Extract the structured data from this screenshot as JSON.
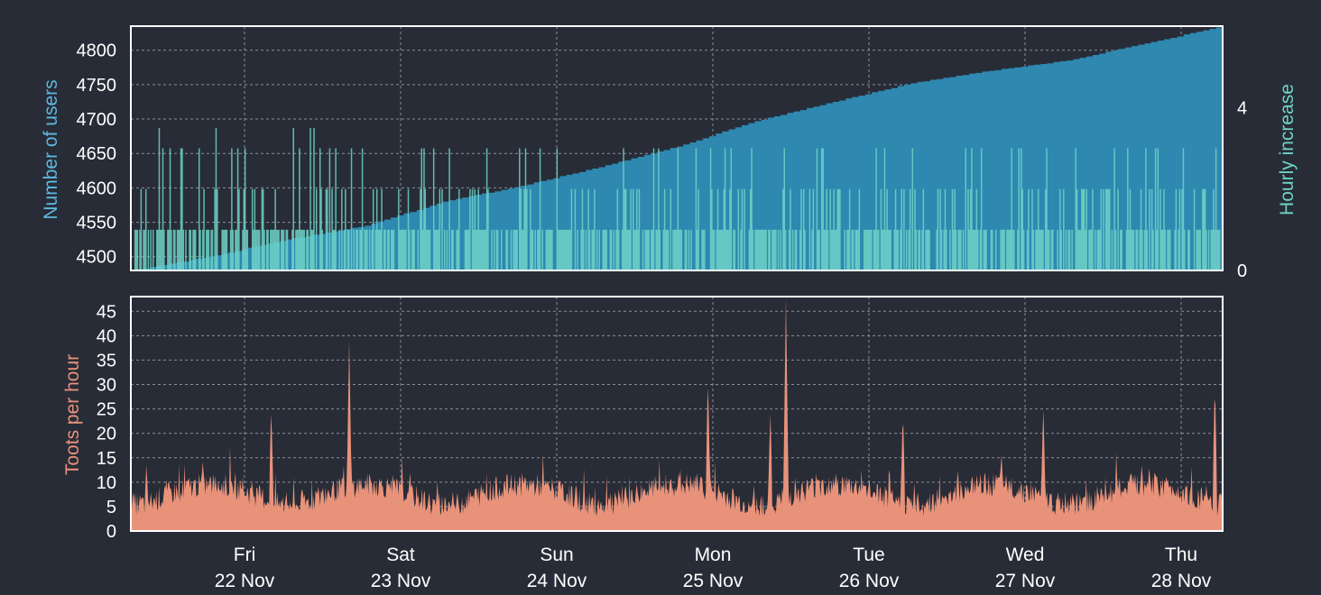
{
  "chart_data": [
    {
      "type": "area",
      "ylabel": "Number of users",
      "y2label": "Hourly increase",
      "ylim": [
        4480,
        4835
      ],
      "y2lim": [
        0,
        6
      ],
      "yticks": [
        4500,
        4550,
        4600,
        4650,
        4700,
        4750,
        4800
      ],
      "y2ticks": [
        0,
        4
      ],
      "grid": true,
      "series": [
        {
          "name": "Number of users",
          "kind": "cumulative-area",
          "color": "#2e88b0",
          "x_day": [
            0,
            0.5,
            1.0,
            1.5,
            2.0,
            2.5,
            3.0,
            3.5,
            4.0,
            4.5,
            5.0,
            5.5,
            6.0,
            6.5,
            7.0
          ],
          "values": [
            4480,
            4500,
            4525,
            4545,
            4580,
            4603,
            4630,
            4660,
            4697,
            4725,
            4752,
            4770,
            4785,
            4810,
            4835
          ]
        },
        {
          "name": "Hourly increase",
          "kind": "spikes",
          "color": "#6fd3c8",
          "axis": "right"
        }
      ]
    },
    {
      "type": "area",
      "ylabel": "Toots per hour",
      "ylim": [
        0,
        48
      ],
      "yticks": [
        0,
        5,
        10,
        15,
        20,
        25,
        30,
        35,
        40,
        45
      ],
      "grid": true,
      "series": [
        {
          "name": "Toots per hour",
          "color": "#e8927a",
          "peaks_day": [
            0.1,
            0.9,
            1.4,
            3.7,
            4.1,
            4.2,
            4.95,
            5.85,
            6.95
          ],
          "peaks_value": [
            14,
            26,
            39,
            32,
            25,
            48,
            25,
            26,
            31
          ]
        }
      ]
    }
  ],
  "xaxis": {
    "ticks": [
      {
        "day": "Fri",
        "date": "22 Nov"
      },
      {
        "day": "Sat",
        "date": "23 Nov"
      },
      {
        "day": "Sun",
        "date": "24 Nov"
      },
      {
        "day": "Mon",
        "date": "25 Nov"
      },
      {
        "day": "Tue",
        "date": "26 Nov"
      },
      {
        "day": "Wed",
        "date": "27 Nov"
      },
      {
        "day": "Thu",
        "date": "28 Nov"
      }
    ]
  },
  "colors": {
    "background": "#282c37",
    "grid": "#8a8e99",
    "frame": "#ffffff",
    "text": "#ffffff",
    "users_label": "#5fb8e0",
    "increase_label": "#6fd3c8",
    "toots_label": "#e8927a"
  }
}
